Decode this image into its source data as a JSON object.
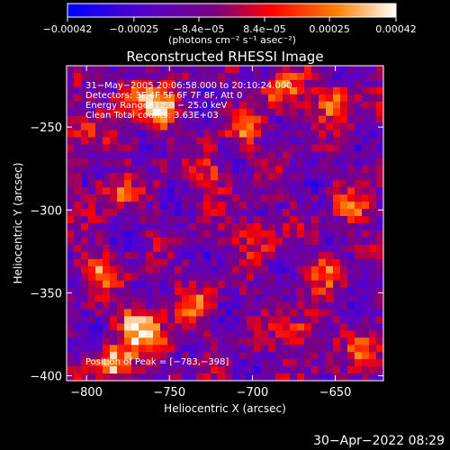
{
  "chart_data": {
    "type": "heatmap",
    "title": "Reconstructed RHESSI Image",
    "xlabel": "Heliocentric X (arcsec)",
    "ylabel": "Heliocentric Y (arcsec)",
    "xlim": [
      -812,
      -621
    ],
    "ylim": [
      -403,
      -213
    ],
    "x_ticks": [
      {
        "value": -800,
        "label": "−800"
      },
      {
        "value": -750,
        "label": "−750"
      },
      {
        "value": -700,
        "label": "−700"
      },
      {
        "value": -650,
        "label": "−650"
      }
    ],
    "y_ticks": [
      {
        "value": -250,
        "label": "−250"
      },
      {
        "value": -300,
        "label": "−300"
      },
      {
        "value": -350,
        "label": "−350"
      },
      {
        "value": -400,
        "label": "−400"
      }
    ],
    "colorbar": {
      "range": [
        -0.00042,
        0.00042
      ],
      "ticks": [
        {
          "value": -0.00042,
          "label": "−0.00042"
        },
        {
          "value": -0.00025,
          "label": "−0.00025"
        },
        {
          "value": -8.4e-05,
          "label": "−8.4e−05"
        },
        {
          "value": 8.4e-05,
          "label": "8.4e−05"
        },
        {
          "value": 0.00025,
          "label": "0.00025"
        },
        {
          "value": 0.00042,
          "label": "0.00042"
        }
      ],
      "units": "(photons cm⁻² s⁻¹ asec⁻²)",
      "colors": [
        "#0000ff",
        "#5a00c8",
        "#7a0080",
        "#ff0000",
        "#ff8000",
        "#ffffff"
      ]
    },
    "annotations": [
      "31−May−2005 20:06:58.000 to 20:10:24.000",
      "Detectors: 3F 4F 5F 6F 7F 8F, Att 0",
      "Energy Range: 12.0 − 25.0 keV",
      "Clean     Total counts: 3.63E+03"
    ],
    "peak_label": "Position of Peak = [−783,−398]",
    "peak_position": [
      -783,
      -398
    ]
  },
  "footer_timestamp": "30−Apr−2022 08:29"
}
